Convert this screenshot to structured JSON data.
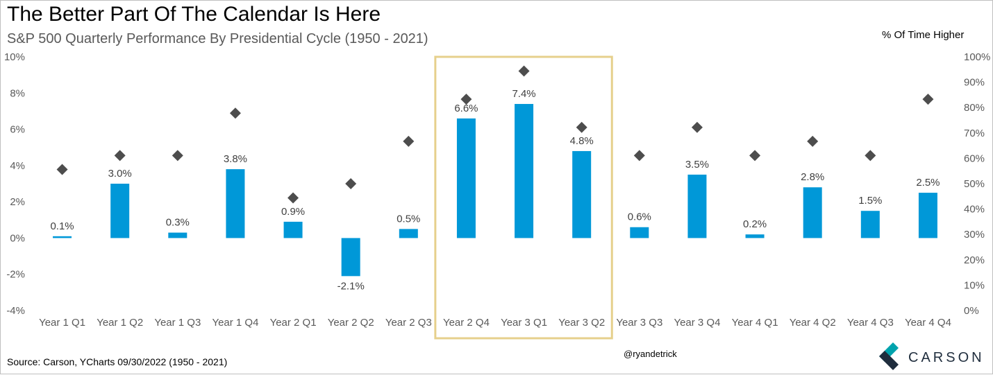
{
  "title": "The Better Part Of The Calendar Is Here",
  "subtitle": "S&P 500 Quarterly Performance By Presidential Cycle (1950 - 2021)",
  "source": "Source: Carson, YCharts 09/30/2022 (1950 - 2021)",
  "handle": "@ryandetrick",
  "logo_text": "CARSON",
  "colors": {
    "bar": "#0098d8",
    "marker": "#4d4d4d",
    "highlight": "#e6d08c",
    "logo_teal": "#00a3ad",
    "logo_navy": "#1f2d3d"
  },
  "chart_data": {
    "type": "bar",
    "categories": [
      "Year 1 Q1",
      "Year 1 Q2",
      "Year 1 Q3",
      "Year 1 Q4",
      "Year 2 Q1",
      "Year 2 Q2",
      "Year 2 Q3",
      "Year 2 Q4",
      "Year 3 Q1",
      "Year 3 Q2",
      "Year 3 Q3",
      "Year 3 Q4",
      "Year 4 Q1",
      "Year 4 Q2",
      "Year 4 Q3",
      "Year 4 Q4"
    ],
    "series": [
      {
        "axis": "left",
        "kind": "bar",
        "values": [
          0.1,
          3.0,
          0.3,
          3.8,
          0.9,
          -2.1,
          0.5,
          6.6,
          7.4,
          4.8,
          0.6,
          3.5,
          0.2,
          2.8,
          1.5,
          2.5
        ],
        "labels": [
          "0.1%",
          "3.0%",
          "0.3%",
          "3.8%",
          "0.9%",
          "-2.1%",
          "0.5%",
          "6.6%",
          "7.4%",
          "4.8%",
          "0.6%",
          "3.5%",
          "0.2%",
          "2.8%",
          "1.5%",
          "2.5%"
        ]
      },
      {
        "axis": "right",
        "kind": "scatter",
        "values": [
          55.6,
          61.1,
          61.1,
          77.8,
          44.4,
          50.0,
          66.7,
          83.3,
          94.4,
          72.2,
          61.1,
          72.2,
          61.1,
          66.7,
          61.1,
          83.3
        ]
      }
    ],
    "ylim": [
      -4,
      10
    ],
    "y_ticks": [
      10,
      8,
      6,
      4,
      2,
      0,
      -2,
      -4
    ],
    "y_tick_labels": [
      "10%",
      "8%",
      "6%",
      "4%",
      "2%",
      "0%",
      "-2%",
      "-4%"
    ],
    "y2label": "% Of Time Higher",
    "y2lim": [
      0,
      100
    ],
    "y2_ticks": [
      100,
      90,
      80,
      70,
      60,
      50,
      40,
      30,
      20,
      10,
      0
    ],
    "y2_tick_labels": [
      "100%",
      "90%",
      "80%",
      "70%",
      "60%",
      "50%",
      "40%",
      "30%",
      "20%",
      "10%",
      "0%"
    ],
    "grid": false,
    "highlight_categories": [
      "Year 2 Q4",
      "Year 3 Q1",
      "Year 3 Q2"
    ]
  }
}
